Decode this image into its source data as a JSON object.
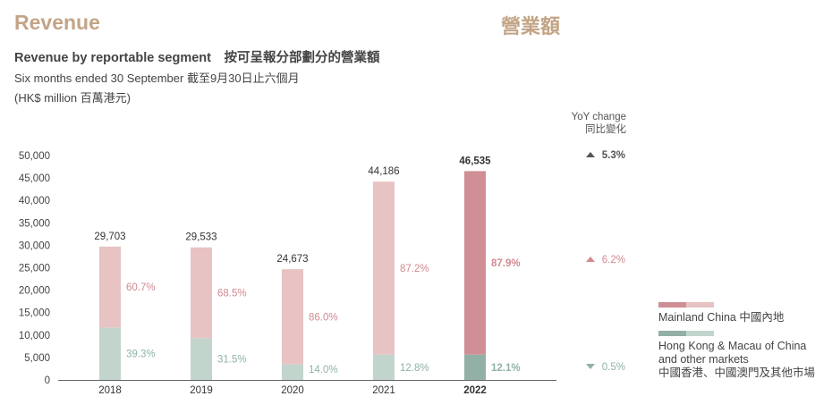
{
  "header": {
    "title": "Revenue",
    "title_zh": "營業額"
  },
  "chart_data": {
    "type": "bar",
    "stacked": true,
    "title": "Revenue by reportable segment　按可呈報分部劃分的營業額",
    "subtitle": "Six months ended 30 September 截至9月30日止六個月",
    "ylabel": "(HK$ million 百萬港元)",
    "ylim": [
      0,
      50000
    ],
    "yticks": [
      "0",
      "5,000",
      "10,000",
      "15,000",
      "20,000",
      "25,000",
      "30,000",
      "35,000",
      "40,000",
      "45,000",
      "50,000"
    ],
    "categories": [
      "2018",
      "2019",
      "2020",
      "2021",
      "2022"
    ],
    "totals": [
      29703,
      29533,
      24673,
      44186,
      46535
    ],
    "total_labels": [
      "29,703",
      "29,533",
      "24,673",
      "44,186",
      "46,535"
    ],
    "series": [
      {
        "name": "Hong Kong & Macau of China and other markets 中國香港、中國澳門及其他市場",
        "share_pct": [
          39.3,
          31.5,
          14.0,
          12.8,
          12.1
        ],
        "share_labels": [
          "39.3%",
          "31.5%",
          "14.0%",
          "12.8%",
          "12.1%"
        ],
        "color_light": "#c2d5cd",
        "color_dark": "#93b0a6",
        "label_color": "#8fb3a5"
      },
      {
        "name": "Mainland China 中國內地",
        "share_pct": [
          60.7,
          68.5,
          86.0,
          87.2,
          87.9
        ],
        "share_labels": [
          "60.7%",
          "68.5%",
          "86.0%",
          "87.2%",
          "87.9%"
        ],
        "color_light": "#e7c3c3",
        "color_dark": "#cf8f95",
        "label_color": "#d08a90"
      }
    ],
    "highlight_category": "2022",
    "yoy": {
      "header": "YoY change",
      "header_zh": "同比變化",
      "items": [
        {
          "label": "5.3%",
          "direction": "up",
          "color": "#555555"
        },
        {
          "label": "6.2%",
          "direction": "up",
          "color": "#d08a90"
        },
        {
          "label": "0.5%",
          "direction": "down",
          "color": "#8fb3a5"
        }
      ]
    },
    "legend": {
      "mainland": "Mainland China 中國內地",
      "hk_line1": "Hong Kong & Macau of China",
      "hk_line2": "and other markets",
      "hk_line3": "中國香港、中國澳門及其他市場"
    }
  }
}
